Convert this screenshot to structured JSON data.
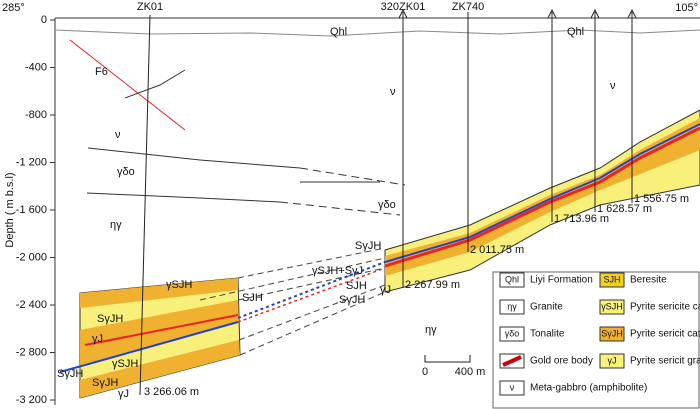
{
  "header": {
    "left_azimuth": "285°",
    "right_azimuth": "105°"
  },
  "axis": {
    "title": "Depth ( m b.s.l)",
    "ticks": [
      "0",
      "-400",
      "-800",
      "-1 200",
      "-1 600",
      "-2 000",
      "-2 400",
      "-2 800",
      "-3 200"
    ]
  },
  "drillholes": [
    "ZK01",
    "320ZK01",
    "ZK740"
  ],
  "formations": [
    "Qhl",
    "Qhl",
    "F6",
    "ν",
    "ν",
    "ν",
    "γδo",
    "γδo",
    "ηγ",
    "ηγ"
  ],
  "ore_labels": [
    "SγJH",
    "γSJH+SγJ",
    "SJH",
    "γJ",
    "SγJH",
    "γSJH",
    "SJH",
    "SγJH",
    "γJ",
    "γSJH",
    "SγJH",
    "SγJH",
    "γJ"
  ],
  "depths": [
    "3 266.06 m",
    "2 267.99 m",
    "2 011.75 m",
    "1 713.96 m",
    "1 628.57 m",
    "1 556.75 m"
  ],
  "scale": {
    "start": "0",
    "end": "400 m"
  },
  "legend": [
    {
      "symbol": "Qhl",
      "label": "Liyi Formation"
    },
    {
      "symbol": "SJH",
      "label": "Beresite"
    },
    {
      "symbol": "ηγ",
      "label": "Granite"
    },
    {
      "symbol": "γSJH",
      "label": "Pyrite sericite cataclasite"
    },
    {
      "symbol": "γδo",
      "label": "Tonalite"
    },
    {
      "symbol": "SγJH",
      "label": "Pyrite sericit cataclastic granite"
    },
    {
      "symbol": "",
      "label": "Gold ore body"
    },
    {
      "symbol": "γJ",
      "label": "Pyrite sericit granite"
    },
    {
      "symbol": "ν",
      "label": "Meta-gabbro (amphibolite)"
    }
  ]
}
